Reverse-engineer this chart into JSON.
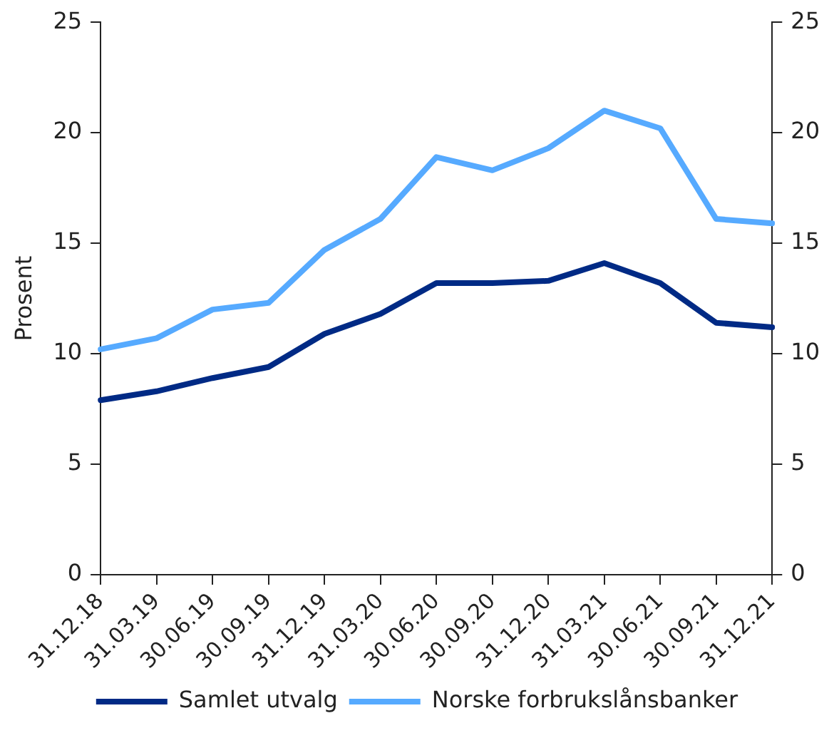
{
  "chart_data": {
    "type": "line",
    "ylabel": "Prosent",
    "categories": [
      "31.12.18",
      "31.03.19",
      "30.06.19",
      "30.09.19",
      "31.12.19",
      "31.03.20",
      "30.06.20",
      "30.09.20",
      "31.12.20",
      "31.03.21",
      "30.06.21",
      "30.09.21",
      "31.12.21"
    ],
    "series": [
      {
        "name": "Samlet utvalg",
        "color": "#002a85",
        "values": [
          7.9,
          8.3,
          8.9,
          9.4,
          10.9,
          11.8,
          13.2,
          13.2,
          13.3,
          14.1,
          13.2,
          11.4,
          11.2
        ]
      },
      {
        "name": "Norske forbrukslånsbanker",
        "color": "#56aaff",
        "values": [
          10.2,
          10.7,
          12.0,
          12.3,
          14.7,
          16.1,
          18.9,
          18.3,
          19.3,
          21.0,
          20.2,
          16.1,
          15.9
        ]
      }
    ],
    "ylim": [
      0,
      25
    ],
    "yticks": [
      0,
      5,
      10,
      15,
      20,
      25
    ],
    "y2lim": [
      0,
      25
    ],
    "y2ticks": [
      0,
      5,
      10,
      15,
      20,
      25
    ],
    "grid": false,
    "legend": "bottom",
    "marker": "none",
    "line_style": "solid"
  }
}
